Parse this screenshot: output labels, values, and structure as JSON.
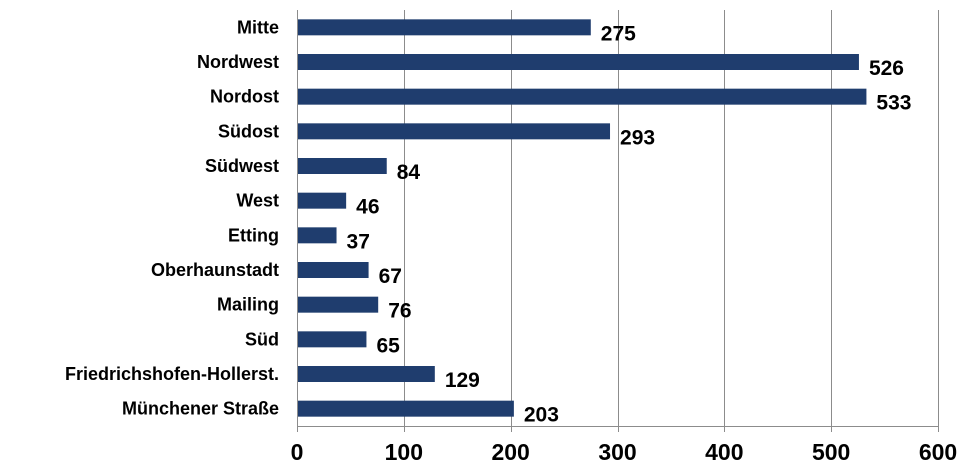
{
  "chart_data": {
    "type": "bar",
    "orientation": "horizontal",
    "categories": [
      "Mitte",
      "Nordwest",
      "Nordost",
      "Südost",
      "Südwest",
      "West",
      "Etting",
      "Oberhaunstadt",
      "Mailing",
      "Süd",
      "Friedrichshofen-Hollerst.",
      "Münchener Straße"
    ],
    "values": [
      275,
      526,
      533,
      293,
      84,
      46,
      37,
      67,
      76,
      65,
      129,
      203
    ],
    "xlim": [
      0,
      600
    ],
    "xticks": [
      0,
      100,
      200,
      300,
      400,
      500,
      600
    ],
    "xtick_labels": [
      "0",
      "100",
      "200",
      "300",
      "400",
      "500",
      "600"
    ],
    "grid": "vertical",
    "legend": "none",
    "title": "",
    "xlabel": "",
    "ylabel": "",
    "bar_color": "#1f3d6e",
    "grid_color": "#8c8c8c"
  }
}
